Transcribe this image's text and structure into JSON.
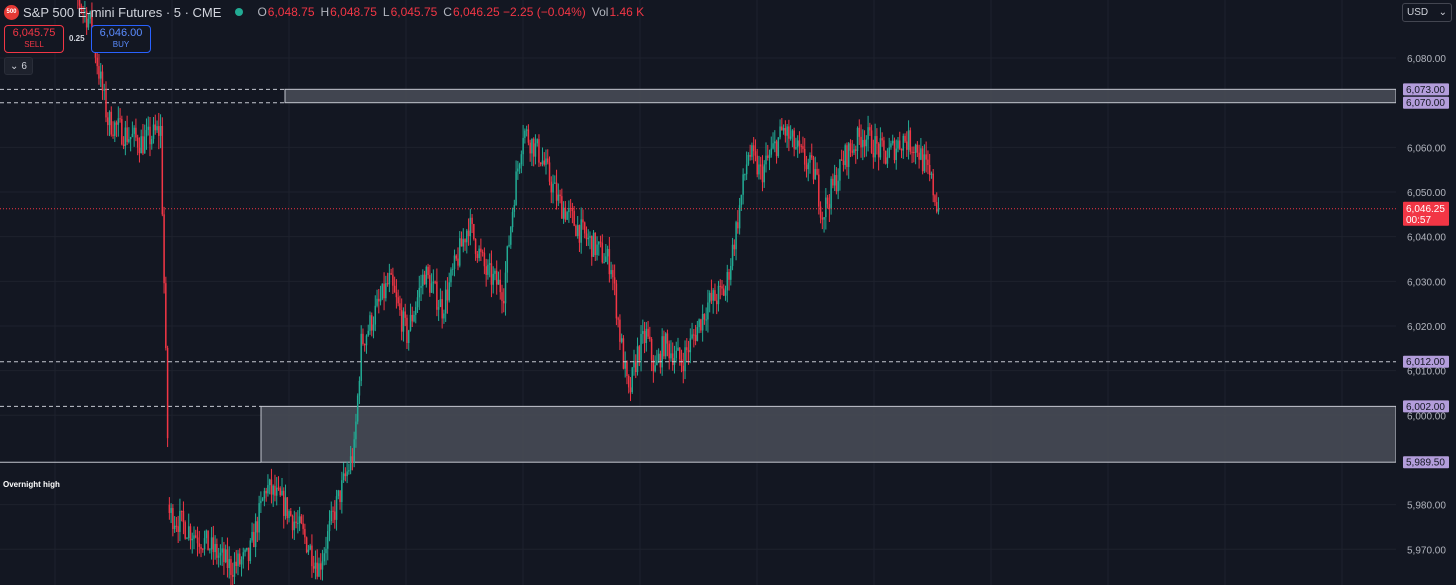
{
  "header": {
    "symbol_logo": "500",
    "symbol_title": "S&P 500 E-mini Futures · 5 · CME",
    "ohlc": [
      {
        "key": "O",
        "value": "6,048.75"
      },
      {
        "key": "H",
        "value": "6,048.75"
      },
      {
        "key": "L",
        "value": "6,045.75"
      },
      {
        "key": "C",
        "value": "6,046.25 −2.25 (−0.04%)"
      }
    ],
    "vol_label": "Vol",
    "vol_value": "1.46 K"
  },
  "trade": {
    "sell_price": "6,045.75",
    "sell_label": "SELL",
    "buy_price": "6,046.00",
    "buy_label": "BUY",
    "spread": "0.25"
  },
  "indicator_toggle": {
    "count": "6"
  },
  "currency": {
    "selected": "USD"
  },
  "colors": {
    "background": "#131722",
    "grid": "#1e222d",
    "up": "#22ab94",
    "down": "#f23645",
    "zone_fill": "#4a4d58",
    "zone_border": "#c4c7d0",
    "level_label_bg": "#b39ddb"
  },
  "chart_data": {
    "type": "candlestick",
    "y_axis": {
      "min": 5962.0,
      "max": 6093.0,
      "ticks": [
        "6,080.00",
        "6,060.00",
        "6,050.00",
        "6,040.00",
        "6,030.00",
        "6,020.00",
        "6,010.00",
        "6,000.00",
        "5,980.00",
        "5,970.00"
      ],
      "tick_values": [
        6080,
        6060,
        6050,
        6040,
        6030,
        6020,
        6010,
        6000,
        5980,
        5970
      ]
    },
    "zones": [
      {
        "top": 6073.0,
        "bottom": 6070.0,
        "top_label": "6,073.00",
        "bottom_label": "6,070.00"
      },
      {
        "top": 6002.0,
        "bottom": 5989.5,
        "top_label": "6,002.00",
        "bottom_label": "5,989.50"
      }
    ],
    "levels": [
      {
        "value": 6012.0,
        "label": "6,012.00",
        "style": "dashed"
      }
    ],
    "annotation": {
      "text": "Overnight high"
    },
    "last_price": {
      "value": 6046.25,
      "label": "6,046.25",
      "countdown": "00:57"
    },
    "candle_anchors": [
      [
        0,
        6100
      ],
      [
        16,
        6088
      ],
      [
        26,
        6066
      ],
      [
        36,
        6063
      ],
      [
        46,
        6061
      ],
      [
        56,
        6064
      ],
      [
        61,
        5978
      ],
      [
        80,
        5972
      ],
      [
        96,
        5966
      ],
      [
        106,
        5968
      ],
      [
        116,
        5984
      ],
      [
        126,
        5980
      ],
      [
        136,
        5974
      ],
      [
        146,
        5966
      ],
      [
        156,
        5980
      ],
      [
        166,
        5992
      ],
      [
        170,
        6016
      ],
      [
        186,
        6030
      ],
      [
        196,
        6018
      ],
      [
        206,
        6032
      ],
      [
        216,
        6024
      ],
      [
        231,
        6043
      ],
      [
        241,
        6032
      ],
      [
        251,
        6028
      ],
      [
        257,
        6050
      ],
      [
        262,
        6064
      ],
      [
        272,
        6058
      ],
      [
        282,
        6048
      ],
      [
        297,
        6040
      ],
      [
        312,
        6034
      ],
      [
        317,
        6018
      ],
      [
        322,
        6004
      ],
      [
        327,
        6014
      ],
      [
        332,
        6018
      ],
      [
        337,
        6010
      ],
      [
        342,
        6016
      ],
      [
        352,
        6012
      ],
      [
        357,
        6016
      ],
      [
        367,
        6025
      ],
      [
        377,
        6028
      ],
      [
        384,
        6044
      ],
      [
        390,
        6059
      ],
      [
        397,
        6054
      ],
      [
        410,
        6064
      ],
      [
        420,
        6058
      ],
      [
        428,
        6054
      ],
      [
        432,
        6045
      ],
      [
        445,
        6058
      ],
      [
        455,
        6063
      ],
      [
        468,
        6058
      ],
      [
        478,
        6062
      ],
      [
        486,
        6060
      ],
      [
        494,
        6052
      ],
      [
        498,
        6046
      ]
    ]
  }
}
